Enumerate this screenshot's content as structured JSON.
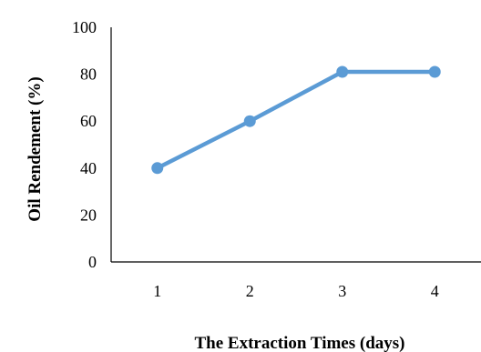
{
  "chart_data": {
    "type": "line",
    "categories": [
      "1",
      "2",
      "3",
      "4"
    ],
    "series": [
      {
        "values": [
          40,
          60,
          81,
          81
        ],
        "color": "#5B9BD5"
      }
    ],
    "xlabel": "The Extraction Times (days)",
    "ylabel": "Oil Rendement  (%)",
    "ylim": [
      0,
      100
    ],
    "yticks": [
      "0",
      "20",
      "40",
      "60",
      "80",
      "100"
    ],
    "grid": false,
    "legend": "none"
  }
}
